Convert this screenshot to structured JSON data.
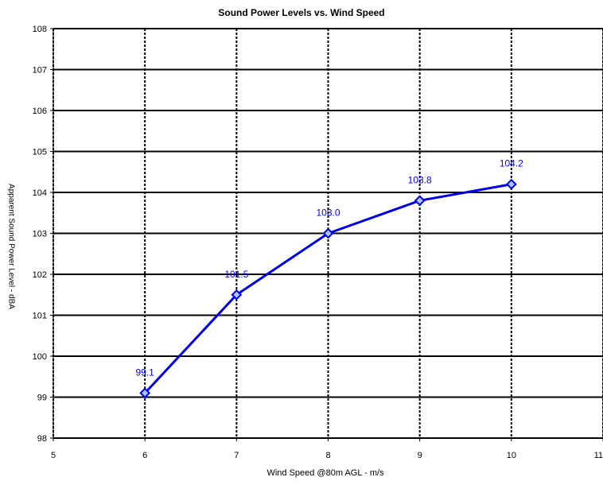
{
  "chart_data": {
    "type": "line",
    "title": "Sound Power Levels vs. Wind Speed",
    "xlabel": "Wind Speed @80m AGL - m/s",
    "ylabel": "Apparent Sound Power Level - dBA",
    "xlim": [
      5,
      11
    ],
    "ylim": [
      98,
      108
    ],
    "xticks": [
      5,
      6,
      7,
      8,
      9,
      10,
      11
    ],
    "yticks": [
      98,
      99,
      100,
      101,
      102,
      103,
      104,
      105,
      106,
      107,
      108
    ],
    "grid": true,
    "series": [
      {
        "color": "#0000ee",
        "marker": "diamond",
        "x": [
          6,
          7,
          8,
          9,
          10
        ],
        "y": [
          99.1,
          101.5,
          103.0,
          103.8,
          104.2
        ],
        "labels": [
          "99.1",
          "101.5",
          "103.0",
          "103.8",
          "104.2"
        ]
      }
    ]
  }
}
